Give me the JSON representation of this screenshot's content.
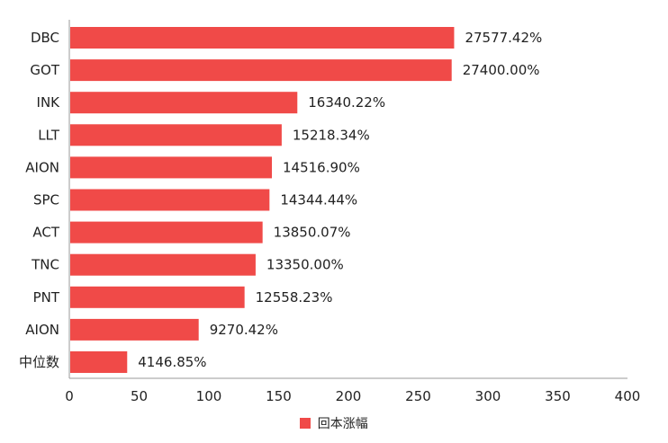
{
  "chart_data": {
    "type": "bar",
    "orientation": "horizontal",
    "title": "",
    "xlabel": "",
    "ylabel": "",
    "categories": [
      "DBC",
      "GOT",
      "INK",
      "LLT",
      "AION",
      "SPC",
      "ACT",
      "TNC",
      "PNT",
      "AION",
      "中位数"
    ],
    "values": [
      275.7742,
      274.0,
      163.4022,
      152.1834,
      145.169,
      143.4444,
      138.5007,
      133.5,
      125.5823,
      92.7042,
      41.4685
    ],
    "data_labels": [
      "27577.42%",
      "27400.00%",
      "16340.22%",
      "15218.34%",
      "14516.90%",
      "14344.44%",
      "13850.07%",
      "13350.00%",
      "12558.23%",
      "9270.42%",
      "4146.85%"
    ],
    "xlim": [
      0,
      400
    ],
    "x_ticks": [
      0,
      50,
      100,
      150,
      200,
      250,
      300,
      350,
      400
    ],
    "grid": false,
    "legend_position": "bottom",
    "series": [
      {
        "name": "回本涨幅",
        "color": "#F04A48"
      }
    ]
  }
}
